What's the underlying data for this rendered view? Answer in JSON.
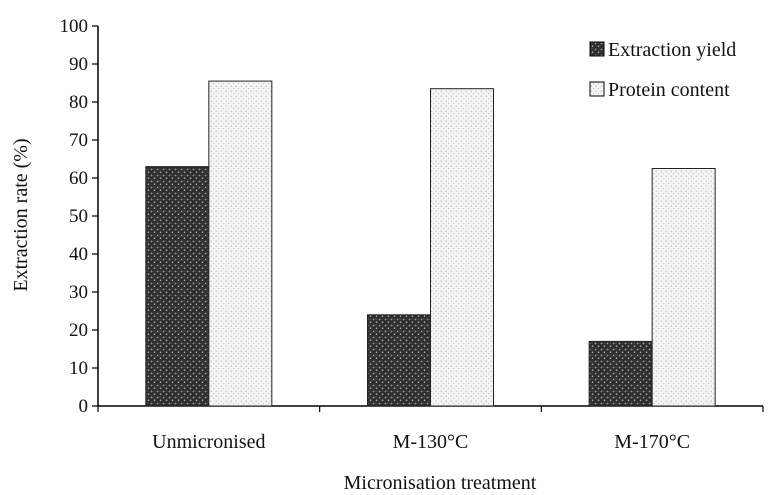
{
  "chart_data": {
    "type": "bar",
    "title": "",
    "xlabel": "Micronisation treatment",
    "ylabel": "Extraction rate  (%)",
    "ylim": [
      0,
      100
    ],
    "yticks": [
      0,
      10,
      20,
      30,
      40,
      50,
      60,
      70,
      80,
      90,
      100
    ],
    "categories": [
      "Unmicronised",
      "M-130°C",
      "M-170°C"
    ],
    "series": [
      {
        "name": "Extraction yield",
        "values": [
          63,
          24,
          17
        ],
        "color": "#3a3a3a",
        "pattern": "dark-speckle"
      },
      {
        "name": "Protein content",
        "values": [
          85.5,
          83.5,
          62.5
        ],
        "color": "#efefef",
        "pattern": "light-speckle"
      }
    ],
    "grid": false,
    "legend_position": "top-right"
  }
}
